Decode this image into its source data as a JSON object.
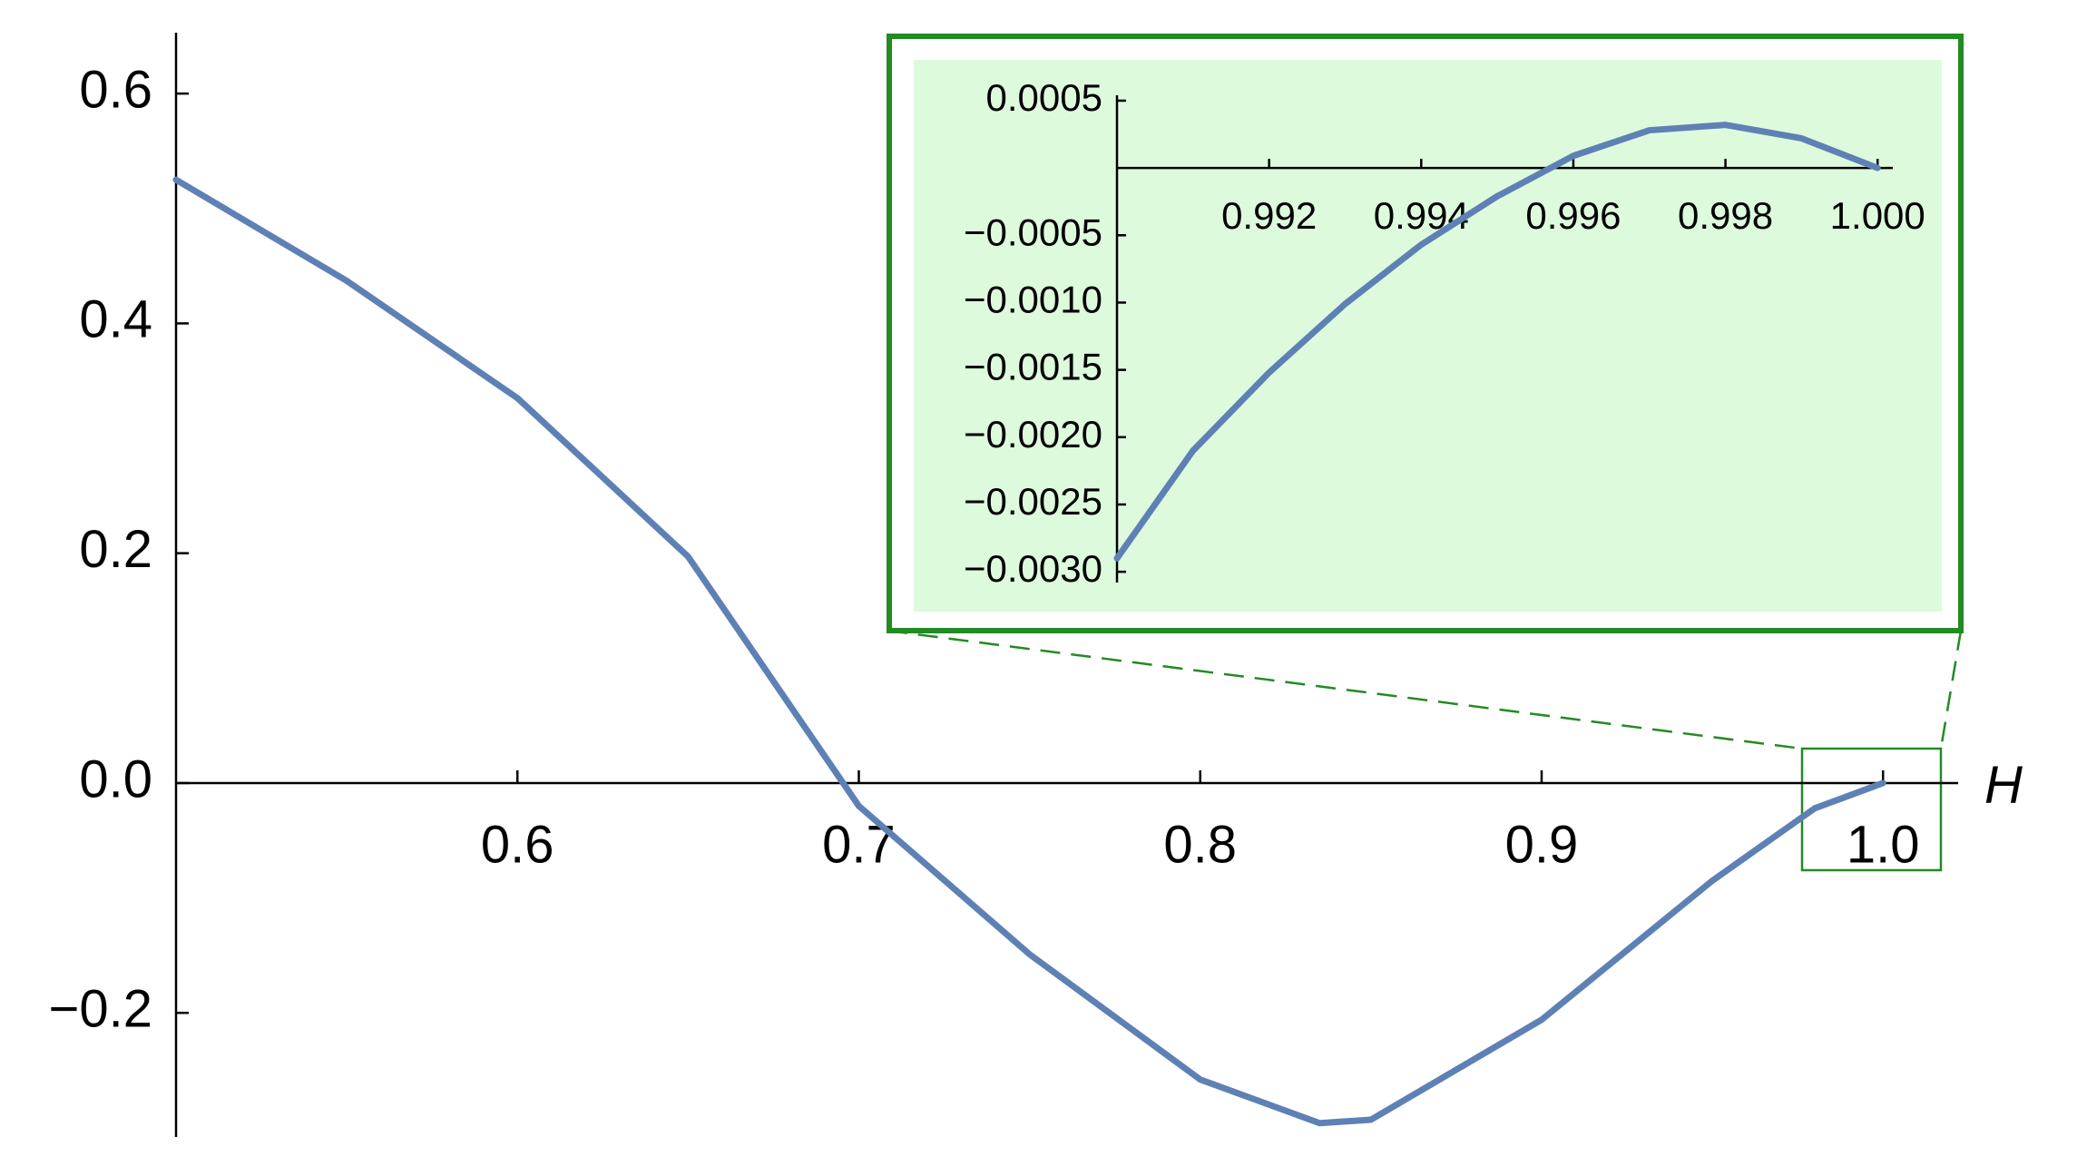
{
  "chart_data": [
    {
      "type": "line",
      "xlabel": "H",
      "x": [
        0.5,
        0.55,
        0.6,
        0.65,
        0.7,
        0.75,
        0.8,
        0.835,
        0.85,
        0.9,
        0.95,
        0.98,
        1.0
      ],
      "values": [
        0.525,
        0.437,
        0.335,
        0.197,
        -0.02,
        -0.149,
        -0.258,
        -0.296,
        -0.293,
        -0.206,
        -0.085,
        -0.022,
        0
      ],
      "color": "#5e81b5",
      "xlim": [
        0.5,
        1.022
      ],
      "ylim": [
        -0.308,
        0.653
      ],
      "xticks": [
        0.6,
        0.7,
        0.8,
        0.9,
        {
          "value": 1,
          "label": "1.0"
        }
      ],
      "yticks": [
        {
          "value": -0.2,
          "label": "−0.2"
        },
        {
          "value": 0,
          "label": "0.0"
        },
        0.2,
        0.4,
        0.6
      ]
    },
    {
      "type": "line",
      "x": [
        0.99,
        0.991,
        0.992,
        0.993,
        0.994,
        0.995,
        0.996,
        0.997,
        0.998,
        0.999,
        1.0
      ],
      "values": [
        -0.0029,
        -0.0021,
        -0.00152,
        -0.00101,
        -0.00057,
        -0.00021,
        9e-05,
        0.00028,
        0.00032,
        0.00022,
        0
      ],
      "color": "#5e81b5",
      "xlim": [
        0.99,
        1.0002
      ],
      "ylim": [
        -0.00308,
        0.00054
      ],
      "xticks": [
        0.992,
        0.994,
        0.996,
        0.998,
        {
          "value": 1,
          "label": "1.000"
        }
      ],
      "yticks": [
        {
          "value": -0.003,
          "label": "−0.0030"
        },
        {
          "value": -0.0025,
          "label": "−0.0025"
        },
        {
          "value": -0.002,
          "label": "−0.0020"
        },
        {
          "value": -0.0015,
          "label": "−0.0015"
        },
        {
          "value": -0.001,
          "label": "−0.0010"
        },
        {
          "value": -0.0005,
          "label": "−0.0005"
        },
        0.0005
      ]
    }
  ]
}
